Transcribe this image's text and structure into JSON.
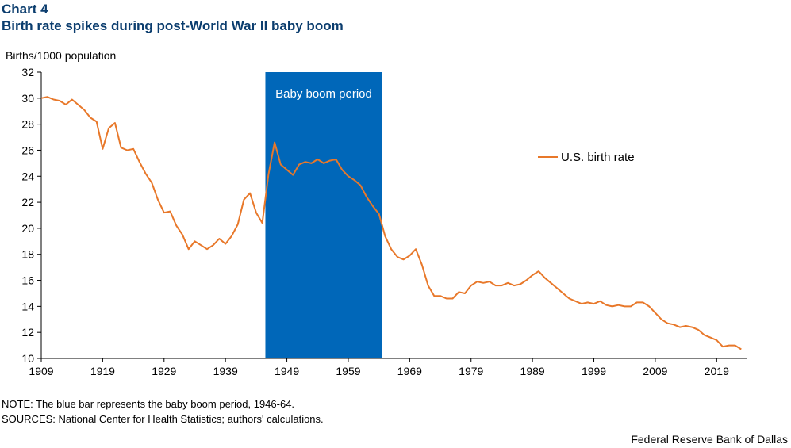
{
  "header": {
    "chart_number": "Chart 4",
    "title": "Birth rate spikes during post-World War II baby boom"
  },
  "footer": {
    "note": "NOTE: The blue bar represents the baby boom period, 1946-64.",
    "sources": "SOURCES: National Center for Health Statistics; authors' calculations.",
    "credit": "Federal Reserve Bank of Dallas"
  },
  "colors": {
    "line": "#e8782a",
    "band": "#0067b9",
    "title": "#0b3d6e"
  },
  "chart_data": {
    "type": "line",
    "ylabel": "Births/1000 population",
    "xlim": [
      1909,
      2024
    ],
    "ylim": [
      10,
      32
    ],
    "y_ticks": [
      10,
      12,
      14,
      16,
      18,
      20,
      22,
      24,
      26,
      28,
      30,
      32
    ],
    "x_ticks": [
      1909,
      1919,
      1929,
      1939,
      1949,
      1959,
      1969,
      1979,
      1989,
      1999,
      2009,
      2019
    ],
    "grid": false,
    "legend_position": "right",
    "band": {
      "start": 1945.5,
      "end": 1964.5,
      "label": "Baby boom period"
    },
    "series": [
      {
        "name": "U.S. birth rate",
        "x": [
          1909,
          1910,
          1911,
          1912,
          1913,
          1914,
          1915,
          1916,
          1917,
          1918,
          1919,
          1920,
          1921,
          1922,
          1923,
          1924,
          1925,
          1926,
          1927,
          1928,
          1929,
          1930,
          1931,
          1932,
          1933,
          1934,
          1935,
          1936,
          1937,
          1938,
          1939,
          1940,
          1941,
          1942,
          1943,
          1944,
          1945,
          1946,
          1947,
          1948,
          1949,
          1950,
          1951,
          1952,
          1953,
          1954,
          1955,
          1956,
          1957,
          1958,
          1959,
          1960,
          1961,
          1962,
          1963,
          1964,
          1965,
          1966,
          1967,
          1968,
          1969,
          1970,
          1971,
          1972,
          1973,
          1974,
          1975,
          1976,
          1977,
          1978,
          1979,
          1980,
          1981,
          1982,
          1983,
          1984,
          1985,
          1986,
          1987,
          1988,
          1989,
          1990,
          1991,
          1992,
          1993,
          1994,
          1995,
          1996,
          1997,
          1998,
          1999,
          2000,
          2001,
          2002,
          2003,
          2004,
          2005,
          2006,
          2007,
          2008,
          2009,
          2010,
          2011,
          2012,
          2013,
          2014,
          2015,
          2016,
          2017,
          2018,
          2019,
          2020,
          2021,
          2022,
          2023
        ],
        "values": [
          30.0,
          30.1,
          29.9,
          29.8,
          29.5,
          29.9,
          29.5,
          29.1,
          28.5,
          28.2,
          26.1,
          27.7,
          28.1,
          26.2,
          26.0,
          26.1,
          25.1,
          24.2,
          23.5,
          22.2,
          21.2,
          21.3,
          20.2,
          19.5,
          18.4,
          19.0,
          18.7,
          18.4,
          18.7,
          19.2,
          18.8,
          19.4,
          20.3,
          22.2,
          22.7,
          21.2,
          20.4,
          24.1,
          26.6,
          24.9,
          24.5,
          24.1,
          24.9,
          25.1,
          25.0,
          25.3,
          25.0,
          25.2,
          25.3,
          24.5,
          24.0,
          23.7,
          23.3,
          22.4,
          21.7,
          21.1,
          19.4,
          18.4,
          17.8,
          17.6,
          17.9,
          18.4,
          17.2,
          15.6,
          14.8,
          14.8,
          14.6,
          14.6,
          15.1,
          15.0,
          15.6,
          15.9,
          15.8,
          15.9,
          15.6,
          15.6,
          15.8,
          15.6,
          15.7,
          16.0,
          16.4,
          16.7,
          16.2,
          15.8,
          15.4,
          15.0,
          14.6,
          14.4,
          14.2,
          14.3,
          14.2,
          14.4,
          14.1,
          14.0,
          14.1,
          14.0,
          14.0,
          14.3,
          14.3,
          14.0,
          13.5,
          13.0,
          12.7,
          12.6,
          12.4,
          12.5,
          12.4,
          12.2,
          11.8,
          11.6,
          11.4,
          10.9,
          11.0,
          11.0,
          10.7
        ]
      }
    ]
  }
}
